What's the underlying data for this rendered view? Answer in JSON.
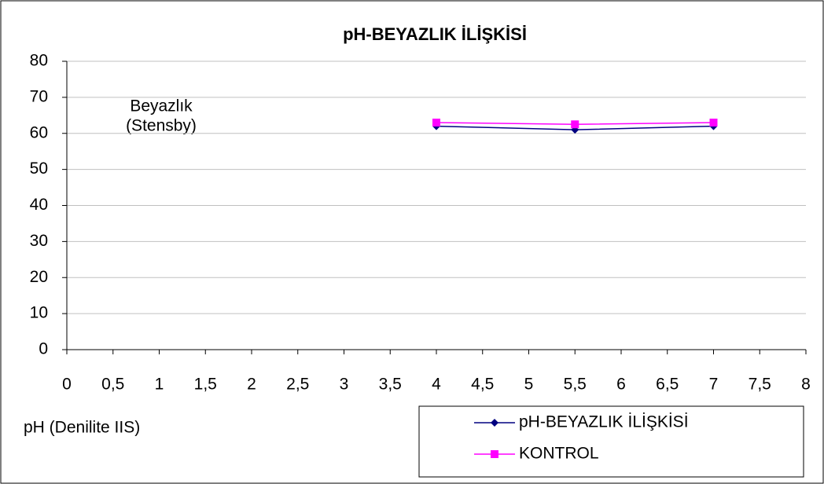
{
  "chart_data": {
    "type": "line",
    "title": "pH-BEYAZLIK İLİŞKİSİ",
    "y_label": [
      "Beyazlık",
      "(Stensby)"
    ],
    "x_label": "pH (Denilite IIS)",
    "xlim": [
      0,
      8
    ],
    "xticks": [
      0,
      {
        "value": 0.5,
        "label": "0,5"
      },
      1,
      {
        "value": 1.5,
        "label": "1,5"
      },
      2,
      {
        "value": 2.5,
        "label": "2,5"
      },
      3,
      {
        "value": 3.5,
        "label": "3,5"
      },
      4,
      {
        "value": 4.5,
        "label": "4,5"
      },
      5,
      {
        "value": 5.5,
        "label": "5,5"
      },
      6,
      {
        "value": 6.5,
        "label": "6,5"
      },
      7,
      {
        "value": 7.5,
        "label": "7,5"
      },
      8
    ],
    "ylim": [
      0,
      80
    ],
    "yticks": [
      0,
      10,
      20,
      30,
      40,
      50,
      60,
      70,
      80
    ],
    "grid": true,
    "legend": "bottom-right",
    "series": [
      {
        "name": "pH-BEYAZLIK İLİŞKİSİ",
        "color": "#000080",
        "marker": "diamond",
        "x": [
          4,
          5.5,
          7
        ],
        "values": [
          62,
          61,
          62
        ]
      },
      {
        "name": "KONTROL",
        "color": "#ff00ff",
        "marker": "square",
        "x": [
          4,
          5.5,
          7
        ],
        "values": [
          63,
          62.5,
          63
        ]
      }
    ]
  }
}
